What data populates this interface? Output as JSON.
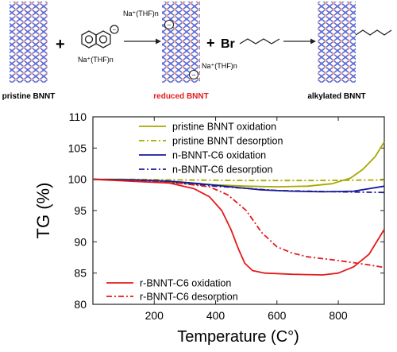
{
  "scheme": {
    "pristine_label": "pristine BNNT",
    "reduced_label": "reduced BNNT",
    "alkylated_label": "alkylated BNNT",
    "plus_1": "+",
    "plus_2": "+",
    "bromine": "Br",
    "reagent_label": "Na⁺(THF)n",
    "top_arrow_label": "Na⁺(THF)n",
    "reduced_side_label": "Na⁺(THF)n",
    "minus_sign": "−",
    "colors": {
      "reduced_label": "#e31a1c",
      "tube_boron": "#f2a08a",
      "tube_nitrogen": "#5c6bd6"
    }
  },
  "chart_data": {
    "type": "line",
    "xlabel": "Temperature (C°)",
    "ylabel": "TG (%)",
    "xlim": [
      0,
      950
    ],
    "ylim": [
      80,
      110
    ],
    "xticks": [
      200,
      400,
      600,
      800
    ],
    "yticks": [
      80,
      85,
      90,
      95,
      100,
      105,
      110
    ],
    "grid": false,
    "legend_top": [
      "pristine BNNT oxidation",
      "pristine BNNT desorption",
      "n-BNNT-C6 oxidation",
      "n-BNNT-C6 desorption"
    ],
    "legend_bottom": [
      "r-BNNT-C6 oxidation",
      "r-BNNT-C6 desorption"
    ],
    "series": [
      {
        "name": "pristine BNNT oxidation",
        "color": "#a8a800",
        "style": "solid",
        "points": [
          [
            0,
            100
          ],
          [
            100,
            100
          ],
          [
            200,
            99.8
          ],
          [
            300,
            99.4
          ],
          [
            400,
            99.1
          ],
          [
            500,
            98.9
          ],
          [
            600,
            98.8
          ],
          [
            700,
            98.9
          ],
          [
            780,
            99.3
          ],
          [
            840,
            100.2
          ],
          [
            880,
            101.6
          ],
          [
            920,
            103.6
          ],
          [
            950,
            106.0
          ]
        ]
      },
      {
        "name": "pristine BNNT desorption",
        "color": "#a8a800",
        "style": "dashdot",
        "points": [
          [
            120,
            100
          ],
          [
            300,
            99.9
          ],
          [
            500,
            99.8
          ],
          [
            700,
            99.8
          ],
          [
            950,
            99.9
          ]
        ]
      },
      {
        "name": "n-BNNT-C6 oxidation",
        "color": "#1a1a99",
        "style": "solid",
        "points": [
          [
            0,
            100
          ],
          [
            150,
            99.9
          ],
          [
            250,
            99.7
          ],
          [
            350,
            99.3
          ],
          [
            450,
            98.8
          ],
          [
            550,
            98.3
          ],
          [
            650,
            98.1
          ],
          [
            750,
            98.0
          ],
          [
            850,
            98.1
          ],
          [
            950,
            98.9
          ]
        ]
      },
      {
        "name": "n-BNNT-C6 desorption",
        "color": "#1a1a99",
        "style": "dashdot",
        "points": [
          [
            0,
            100
          ],
          [
            200,
            99.7
          ],
          [
            400,
            98.9
          ],
          [
            600,
            98.2
          ],
          [
            800,
            98.0
          ],
          [
            950,
            97.9
          ]
        ]
      },
      {
        "name": "r-BNNT-C6 oxidation",
        "color": "#e31a1c",
        "style": "solid",
        "points": [
          [
            0,
            100
          ],
          [
            120,
            99.7
          ],
          [
            250,
            99.4
          ],
          [
            330,
            98.5
          ],
          [
            380,
            97.2
          ],
          [
            420,
            95.0
          ],
          [
            450,
            92.0
          ],
          [
            475,
            88.8
          ],
          [
            495,
            86.6
          ],
          [
            520,
            85.4
          ],
          [
            560,
            85.0
          ],
          [
            650,
            84.8
          ],
          [
            750,
            84.7
          ],
          [
            800,
            85.0
          ],
          [
            850,
            86.0
          ],
          [
            900,
            88.0
          ],
          [
            950,
            92.0
          ]
        ]
      },
      {
        "name": "r-BNNT-C6 desorption",
        "color": "#e31a1c",
        "style": "dashdot",
        "points": [
          [
            120,
            99.7
          ],
          [
            280,
            99.4
          ],
          [
            380,
            98.8
          ],
          [
            440,
            97.5
          ],
          [
            500,
            95.0
          ],
          [
            550,
            91.5
          ],
          [
            600,
            89.2
          ],
          [
            650,
            88.2
          ],
          [
            700,
            87.6
          ],
          [
            800,
            87.0
          ],
          [
            900,
            86.3
          ],
          [
            950,
            85.9
          ]
        ]
      }
    ]
  }
}
